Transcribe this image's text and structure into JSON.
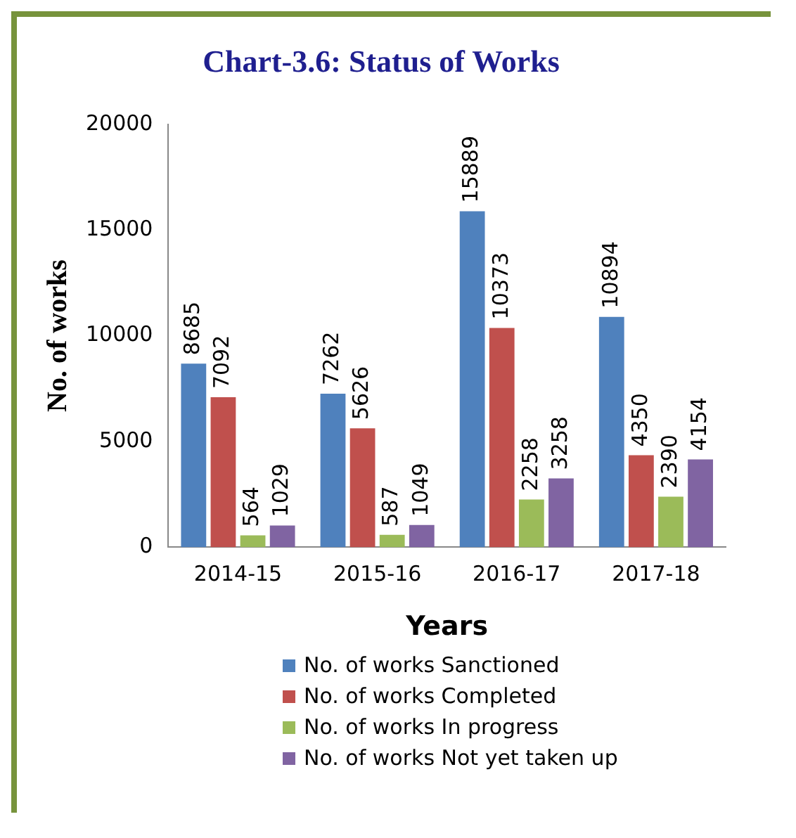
{
  "chart_data": {
    "type": "bar",
    "title": "Chart-3.6: Status of Works",
    "xlabel": "Years",
    "ylabel": "No. of works",
    "categories": [
      "2014-15",
      "2015-16",
      "2016-17",
      "2017-18"
    ],
    "series": [
      {
        "name": "No. of works Sanctioned",
        "color": "#4f81bd",
        "values": [
          8685,
          7262,
          15889,
          10894
        ]
      },
      {
        "name": "No. of works Completed",
        "color": "#c0504d",
        "values": [
          7092,
          5626,
          10373,
          4350
        ]
      },
      {
        "name": "No. of works In progress",
        "color": "#9bbb59",
        "values": [
          564,
          587,
          2258,
          2390
        ]
      },
      {
        "name": "No. of works Not yet taken up",
        "color": "#8064a2",
        "values": [
          1029,
          1049,
          3258,
          4154
        ]
      }
    ],
    "ylim": [
      0,
      20000
    ],
    "yticks": [
      0,
      5000,
      10000,
      15000,
      20000
    ],
    "grid": false,
    "data_labels": true,
    "legend": "bottom"
  }
}
